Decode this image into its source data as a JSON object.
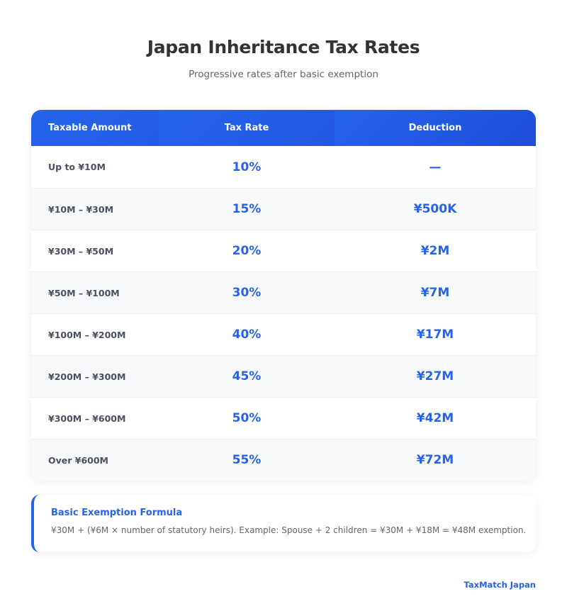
{
  "header": {
    "title": "Japan Inheritance Tax Rates",
    "subtitle": "Progressive rates after basic exemption"
  },
  "table": {
    "columns": [
      "Taxable Amount",
      "Tax Rate",
      "Deduction"
    ],
    "rows": [
      [
        "Up to ¥10M",
        "10%",
        "—"
      ],
      [
        "¥10M – ¥30M",
        "15%",
        "¥500K"
      ],
      [
        "¥30M – ¥50M",
        "20%",
        "¥2M"
      ],
      [
        "¥50M – ¥100M",
        "30%",
        "¥7M"
      ],
      [
        "¥100M – ¥200M",
        "40%",
        "¥17M"
      ],
      [
        "¥200M – ¥300M",
        "45%",
        "¥27M"
      ],
      [
        "¥300M – ¥600M",
        "50%",
        "¥42M"
      ],
      [
        "Over ¥600M",
        "55%",
        "¥72M"
      ]
    ]
  },
  "note": {
    "title": "Basic Exemption Formula",
    "text": "¥30M + (¥6M × number of statutory heirs). Example: Spouse + 2 children = ¥30M + ¥18M = ¥48M exemption."
  },
  "footer": {
    "brand": "TaxMatch Japan"
  },
  "colors": {
    "accent": "#2563eb",
    "header_gradient_end": "#1d4ed8"
  }
}
